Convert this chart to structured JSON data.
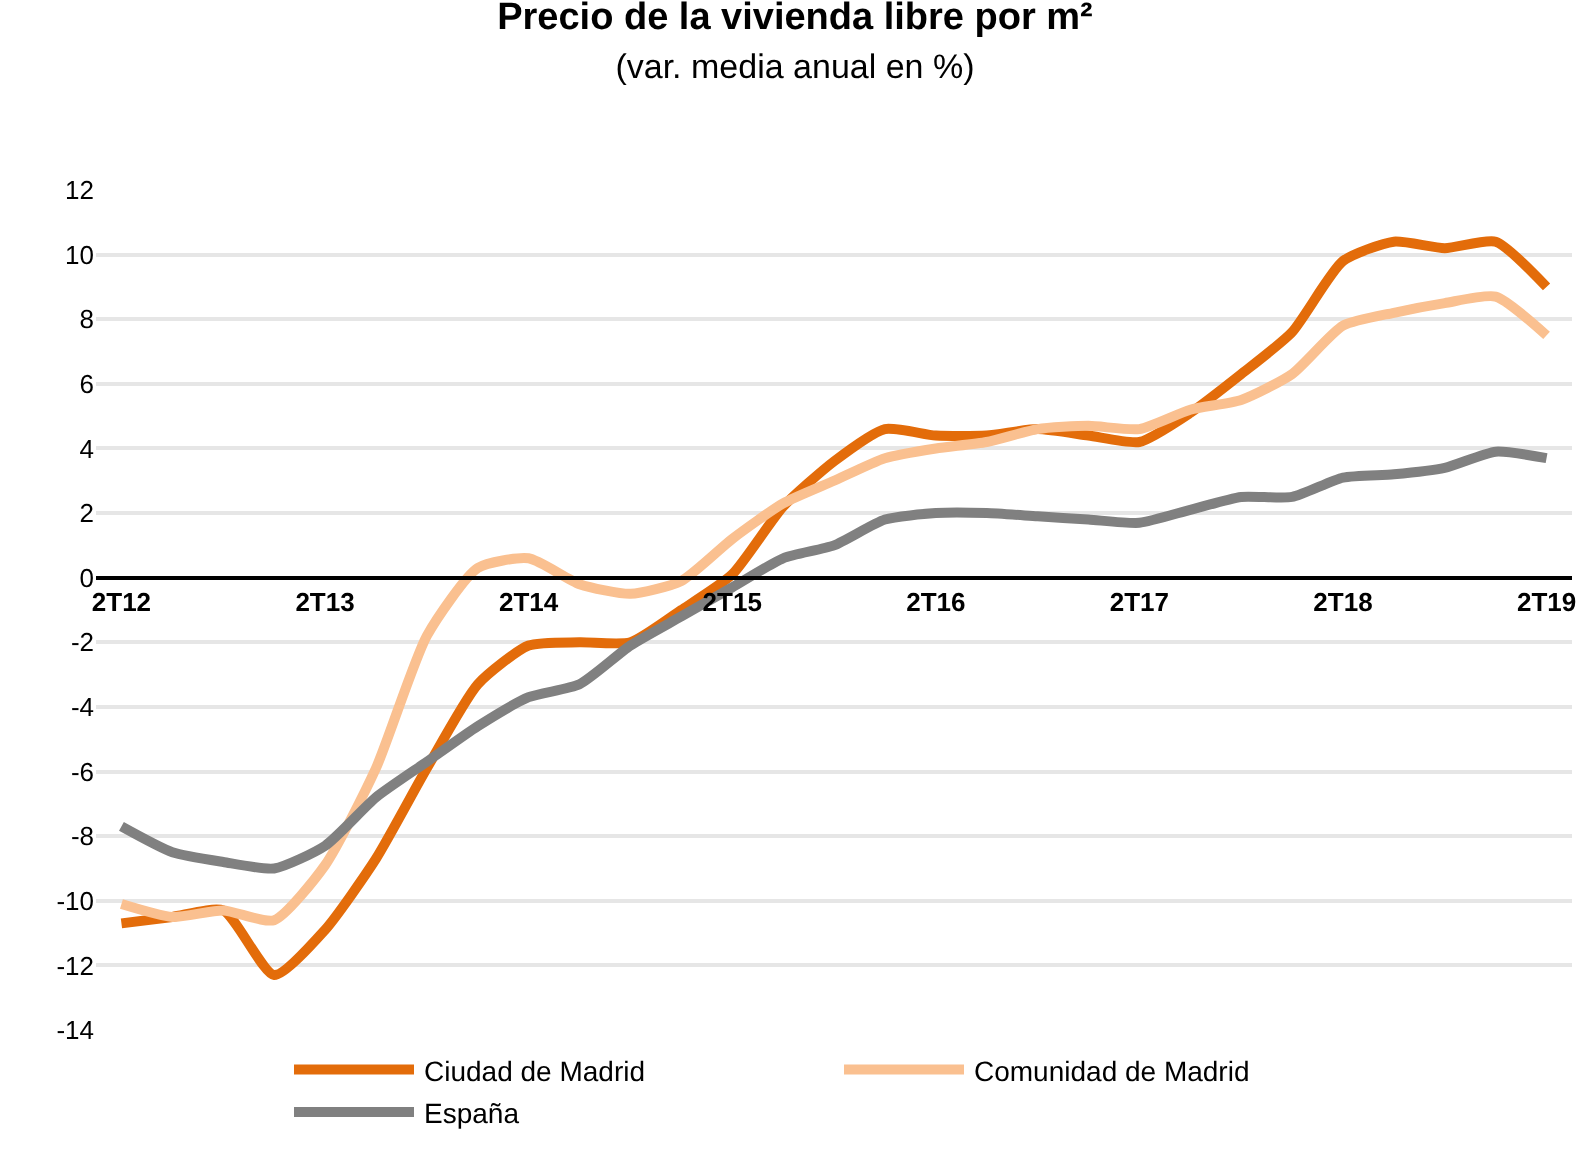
{
  "chart_data": {
    "type": "line",
    "title": "Precio de la vivienda libre por m²",
    "subtitle": "(var. media anual en %)",
    "categories": [
      "2T12",
      null,
      null,
      null,
      "2T13",
      null,
      null,
      null,
      "2T14",
      null,
      null,
      null,
      "2T15",
      null,
      null,
      null,
      "2T16",
      null,
      null,
      null,
      "2T17",
      null,
      null,
      null,
      "2T18",
      null,
      null,
      null,
      "2T19"
    ],
    "ylim": [
      -14,
      12
    ],
    "yticks": [
      -14,
      -12,
      -10,
      -8,
      -6,
      -4,
      -2,
      0,
      2,
      4,
      6,
      8,
      10,
      12
    ],
    "grid": "y",
    "legend": "bottom",
    "marker": "none",
    "line_style": "solid",
    "series": [
      {
        "name": "Ciudad de Madrid",
        "color": "#e36c0a",
        "values": [
          -10.7,
          -10.5,
          -10.3,
          -12.3,
          -10.9,
          -8.7,
          -5.9,
          -3.3,
          -2.1,
          -2.0,
          -2.0,
          -1.0,
          0.1,
          2.2,
          3.6,
          4.6,
          4.4,
          4.4,
          4.6,
          4.4,
          4.2,
          5.1,
          6.3,
          7.6,
          9.8,
          10.4,
          10.2,
          10.4,
          9.0
        ]
      },
      {
        "name": "Comunidad de Madrid",
        "color": "#fac090",
        "values": [
          -10.1,
          -10.5,
          -10.3,
          -10.6,
          -8.9,
          -5.9,
          -1.8,
          0.3,
          0.6,
          -0.2,
          -0.5,
          -0.1,
          1.2,
          2.3,
          3.0,
          3.7,
          4.0,
          4.2,
          4.6,
          4.7,
          4.6,
          5.2,
          5.5,
          6.3,
          7.8,
          8.2,
          8.5,
          8.7,
          7.5
        ]
      },
      {
        "name": "España",
        "color": "#808080",
        "values": [
          -7.7,
          -8.5,
          -8.8,
          -9.0,
          -8.3,
          -6.8,
          -5.7,
          -4.6,
          -3.7,
          -3.3,
          -2.1,
          -1.2,
          -0.3,
          0.6,
          1.0,
          1.8,
          2.0,
          2.0,
          1.9,
          1.8,
          1.7,
          2.1,
          2.5,
          2.5,
          3.1,
          3.2,
          3.4,
          3.9,
          3.7
        ]
      }
    ]
  }
}
